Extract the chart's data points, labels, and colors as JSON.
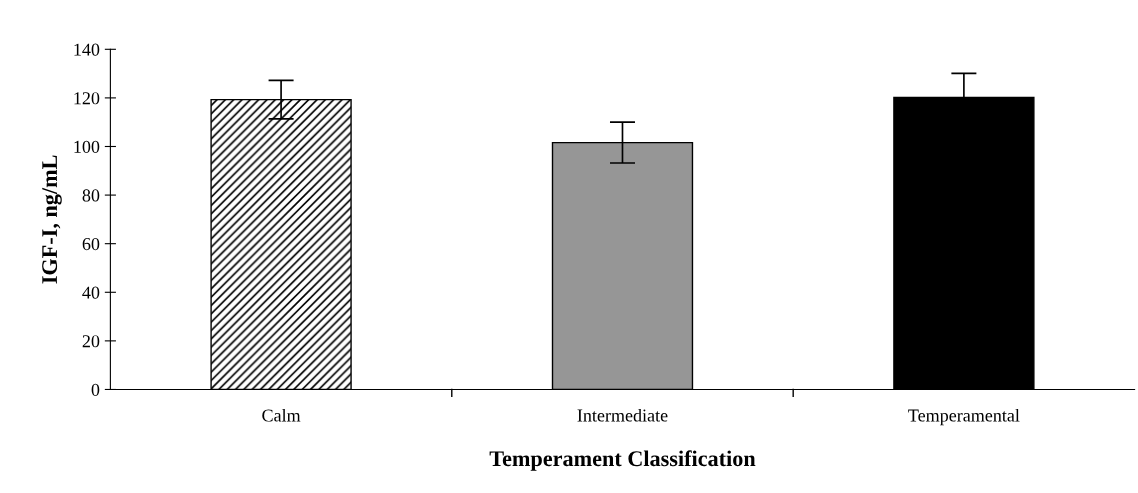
{
  "chart_data": {
    "type": "bar",
    "xlabel": "Temperament Classification",
    "ylabel": "IGF-I, ng/mL",
    "categories": [
      "Calm",
      "Intermediate",
      "Temperamental"
    ],
    "values": [
      119.3,
      101.6,
      120.2
    ],
    "errors": [
      7.9,
      8.4,
      9.9
    ],
    "colors": [
      "#ffffff",
      "#969696",
      "#000000"
    ],
    "ylim": [
      0,
      140
    ],
    "yticks": [
      0,
      20,
      40,
      60,
      80,
      100,
      120,
      140
    ],
    "grid": false
  }
}
